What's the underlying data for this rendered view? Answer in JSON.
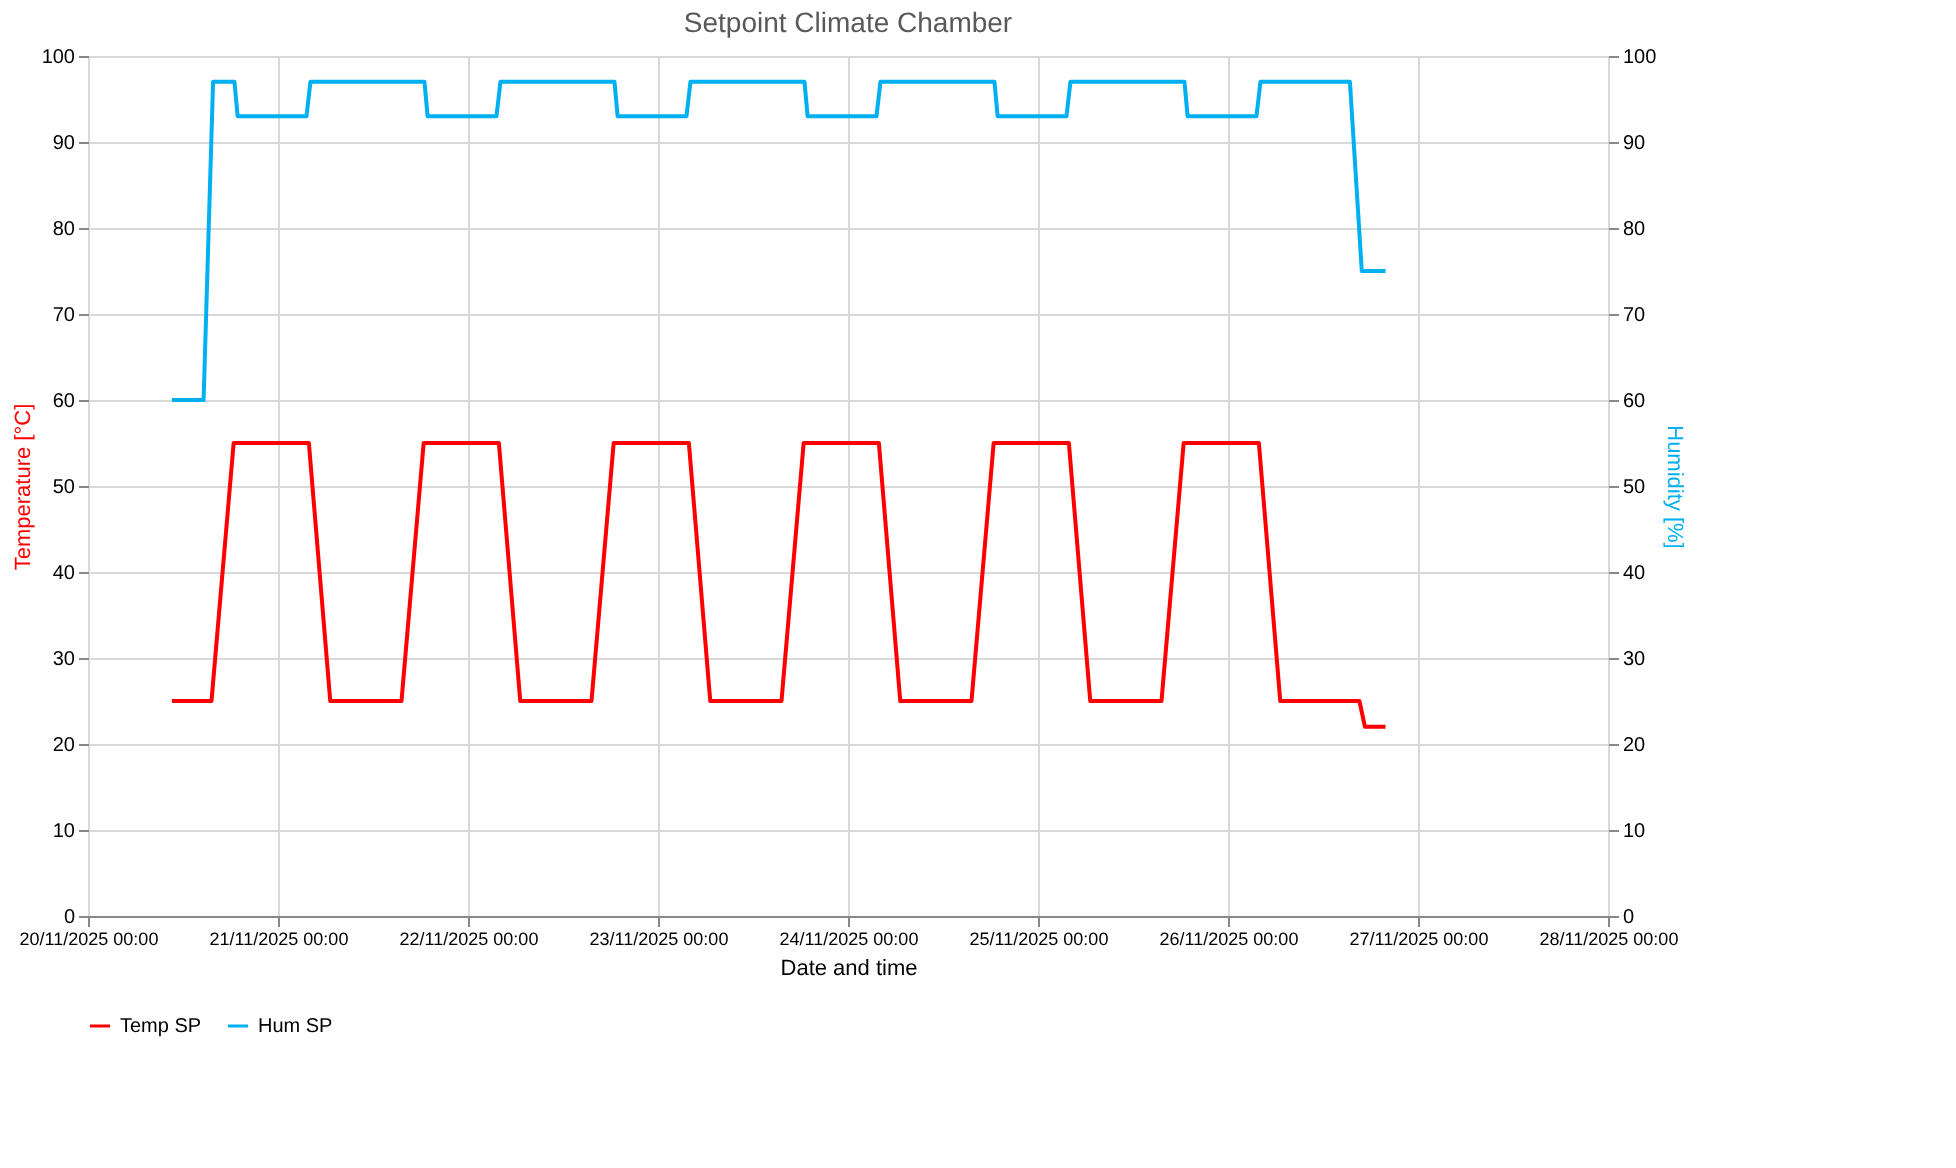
{
  "chart_data": {
    "type": "line",
    "title": "Setpoint Climate Chamber",
    "xlabel": "Date and time",
    "ylabel": "Temperature [°C]",
    "y2label": "Humidity [%]",
    "xlim": [
      "2025-11-20T00:00",
      "2025-11-28T00:00"
    ],
    "xticks": [
      {
        "value": "2025-11-20T00:00",
        "label": "20/11/2025 00:00"
      },
      {
        "value": "2025-11-21T00:00",
        "label": "21/11/2025 00:00"
      },
      {
        "value": "2025-11-22T00:00",
        "label": "22/11/2025 00:00"
      },
      {
        "value": "2025-11-23T00:00",
        "label": "23/11/2025 00:00"
      },
      {
        "value": "2025-11-24T00:00",
        "label": "24/11/2025 00:00"
      },
      {
        "value": "2025-11-25T00:00",
        "label": "25/11/2025 00:00"
      },
      {
        "value": "2025-11-26T00:00",
        "label": "26/11/2025 00:00"
      },
      {
        "value": "2025-11-27T00:00",
        "label": "27/11/2025 00:00"
      },
      {
        "value": "2025-11-28T00:00",
        "label": "28/11/2025 00:00"
      }
    ],
    "ylim": [
      0,
      100
    ],
    "yticks": [
      0,
      10,
      20,
      30,
      40,
      50,
      60,
      70,
      80,
      90,
      100
    ],
    "y2lim": [
      0,
      100
    ],
    "y2ticks": [
      0,
      10,
      20,
      30,
      40,
      50,
      60,
      70,
      80,
      90,
      100
    ],
    "grid": true,
    "legend": "bottom",
    "marker": "none",
    "line_style": "solid",
    "series": [
      {
        "name": "Temp SP",
        "color": "#ff0000",
        "x": [
          "2025-11-20T10:36",
          "2025-11-20T15:36",
          "2025-11-20T18:24",
          "2025-11-21T03:54",
          "2025-11-21T06:36",
          "2025-11-21T15:36",
          "2025-11-21T18:24",
          "2025-11-22T03:54",
          "2025-11-22T06:36",
          "2025-11-22T15:36",
          "2025-11-22T18:24",
          "2025-11-23T03:54",
          "2025-11-23T06:36",
          "2025-11-23T15:36",
          "2025-11-23T18:24",
          "2025-11-24T03:54",
          "2025-11-24T06:36",
          "2025-11-24T15:36",
          "2025-11-24T18:24",
          "2025-11-25T03:54",
          "2025-11-25T06:36",
          "2025-11-25T15:36",
          "2025-11-25T18:24",
          "2025-11-26T03:54",
          "2025-11-26T06:36",
          "2025-11-26T16:36",
          "2025-11-26T17:18",
          "2025-11-26T19:54"
        ],
        "values": [
          25,
          25,
          55,
          55,
          25,
          25,
          55,
          55,
          25,
          25,
          55,
          55,
          25,
          25,
          55,
          55,
          25,
          25,
          55,
          55,
          25,
          25,
          55,
          55,
          25,
          25,
          22,
          22
        ]
      },
      {
        "name": "Hum SP",
        "color": "#00b0f0",
        "axis": "y2",
        "x": [
          "2025-11-20T10:36",
          "2025-11-20T14:36",
          "2025-11-20T15:48",
          "2025-11-20T18:30",
          "2025-11-20T18:54",
          "2025-11-21T03:36",
          "2025-11-21T04:06",
          "2025-11-21T18:30",
          "2025-11-21T18:54",
          "2025-11-22T03:36",
          "2025-11-22T04:06",
          "2025-11-22T18:30",
          "2025-11-22T18:54",
          "2025-11-23T03:36",
          "2025-11-23T04:06",
          "2025-11-23T18:30",
          "2025-11-23T18:54",
          "2025-11-24T03:36",
          "2025-11-24T04:06",
          "2025-11-24T18:30",
          "2025-11-24T18:54",
          "2025-11-25T03:36",
          "2025-11-25T04:06",
          "2025-11-25T18:30",
          "2025-11-25T18:54",
          "2025-11-26T03:36",
          "2025-11-26T04:06",
          "2025-11-26T15:24",
          "2025-11-26T16:54",
          "2025-11-26T19:54"
        ],
        "values": [
          60,
          60,
          97,
          97,
          93,
          93,
          97,
          97,
          93,
          93,
          97,
          97,
          93,
          93,
          97,
          97,
          93,
          93,
          97,
          97,
          93,
          93,
          97,
          97,
          93,
          93,
          97,
          97,
          75,
          75
        ]
      }
    ]
  }
}
